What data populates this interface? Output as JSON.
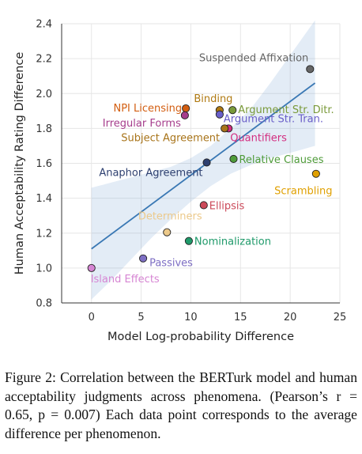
{
  "chart_data": {
    "type": "scatter",
    "title": "",
    "xlabel": "Model Log-probability Difference",
    "ylabel": "Human Acceptability Rating Difference",
    "xlim": [
      -3,
      25
    ],
    "ylim": [
      0.8,
      2.4
    ],
    "xticks": [
      "0",
      "5",
      "10",
      "15",
      "20",
      "25"
    ],
    "yticks": [
      "0.8",
      "1.0",
      "1.2",
      "1.4",
      "1.6",
      "1.8",
      "2.0",
      "2.2",
      "2.4"
    ],
    "grid": true,
    "legend": "none",
    "regression_line": {
      "x": [
        0,
        22.5
      ],
      "y": [
        1.11,
        2.06
      ]
    },
    "confidence_band": {
      "x": [
        0,
        2,
        4,
        6,
        8,
        10,
        12,
        14,
        16,
        18,
        20,
        22.5
      ],
      "upper": [
        1.46,
        1.49,
        1.52,
        1.55,
        1.58,
        1.63,
        1.7,
        1.8,
        1.91,
        2.06,
        2.22,
        2.42
      ],
      "lower": [
        0.82,
        0.93,
        1.05,
        1.17,
        1.28,
        1.38,
        1.47,
        1.54,
        1.59,
        1.63,
        1.66,
        1.7
      ]
    },
    "points": [
      {
        "label": "Suspended Affixation",
        "x": 22.0,
        "y": 2.14,
        "color": "#666666",
        "anchor": "end",
        "dx": -2,
        "dy": -10
      },
      {
        "label": "Binding",
        "x": 12.9,
        "y": 1.905,
        "color": "#b07a12",
        "anchor": "middle",
        "dx": -8,
        "dy": -10
      },
      {
        "label": "NPI Licensing",
        "x": 9.5,
        "y": 1.915,
        "color": "#d35e11",
        "anchor": "end",
        "dx": -5,
        "dy": 4
      },
      {
        "label": "Argument Str. Ditr.",
        "x": 14.2,
        "y": 1.905,
        "color": "#7a9a3a",
        "anchor": "start",
        "dx": 7,
        "dy": 4
      },
      {
        "label": "Irregular Forms",
        "x": 9.4,
        "y": 1.875,
        "color": "#a63d8c",
        "anchor": "end",
        "dx": -5,
        "dy": 14
      },
      {
        "label": "Argument Str. Tran.",
        "x": 12.9,
        "y": 1.88,
        "color": "#6a5fc9",
        "anchor": "start",
        "dx": 5,
        "dy": 10
      },
      {
        "label": "Quantifiers",
        "x": 13.8,
        "y": 1.8,
        "color": "#d32e80",
        "anchor": "start",
        "dx": 2,
        "dy": 16
      },
      {
        "label": "Subject Agreement",
        "x": 13.4,
        "y": 1.8,
        "color": "#a8741a",
        "anchor": "end",
        "dx": -6,
        "dy": 16
      },
      {
        "label": "Relative Clauses",
        "x": 14.3,
        "y": 1.625,
        "color": "#4f9c3a",
        "anchor": "start",
        "dx": 7,
        "dy": 5
      },
      {
        "label": "Anaphor Agreement",
        "x": 11.6,
        "y": 1.605,
        "color": "#2e4070",
        "anchor": "end",
        "dx": -5,
        "dy": 17
      },
      {
        "label": "Scrambling",
        "x": 22.6,
        "y": 1.54,
        "color": "#e0a000",
        "anchor": "middle",
        "dx": -16,
        "dy": 26
      },
      {
        "label": "Ellipsis",
        "x": 11.3,
        "y": 1.36,
        "color": "#cc4a5a",
        "anchor": "start",
        "dx": 7,
        "dy": 5
      },
      {
        "label": "Determiners",
        "x": 7.6,
        "y": 1.205,
        "color": "#ecc98a",
        "anchor": "middle",
        "dx": 4,
        "dy": -16
      },
      {
        "label": "Nominalization",
        "x": 9.8,
        "y": 1.155,
        "color": "#1f9a6a",
        "anchor": "start",
        "dx": 7,
        "dy": 5
      },
      {
        "label": "Passives",
        "x": 5.2,
        "y": 1.055,
        "color": "#7e6fc4",
        "anchor": "start",
        "dx": 8,
        "dy": 10
      },
      {
        "label": "Island Effects",
        "x": 0.0,
        "y": 1.0,
        "color": "#d685d3",
        "anchor": "start",
        "dx": -1,
        "dy": 18
      }
    ]
  },
  "caption": {
    "text": "Figure 2: Correlation between the BERTurk model and human acceptability judgments across phenomena. (Pearson’s r = 0.65, p = 0.007) Each data point corresponds to the average difference per phenomenon."
  }
}
